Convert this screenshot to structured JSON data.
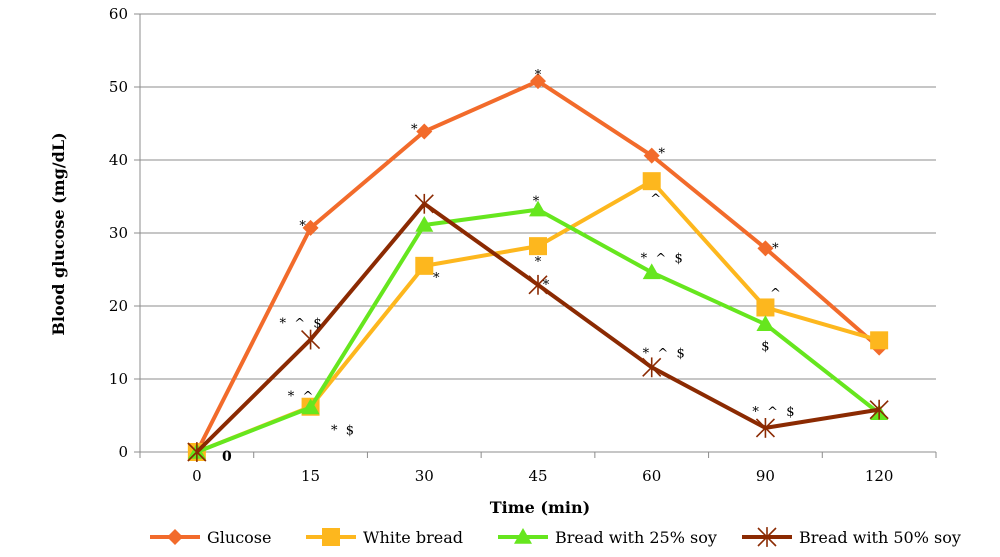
{
  "chart_data": {
    "type": "line",
    "title": "",
    "xlabel": "Time (min)",
    "ylabel": "Blood glucose (mg/dL)",
    "categories": [
      "0",
      "15",
      "30",
      "45",
      "60",
      "90",
      "120"
    ],
    "ylim": [
      0,
      60
    ],
    "yticks": [
      "0",
      "10",
      "20",
      "30",
      "40",
      "50",
      "60"
    ],
    "grid": true,
    "legend_position": "bottom",
    "series": [
      {
        "name": "Glucose",
        "values": [
          0,
          30.7,
          43.9,
          50.8,
          40.6,
          27.9,
          14.3
        ],
        "color": "#f26b2b",
        "marker": "diamond"
      },
      {
        "name": "White bread",
        "values": [
          0,
          6.2,
          25.5,
          28.2,
          37.1,
          19.8,
          15.3
        ],
        "color": "#fdb71e",
        "marker": "square"
      },
      {
        "name": "Bread with 25% soy",
        "values": [
          0,
          6.1,
          31.1,
          33.2,
          24.6,
          17.5,
          5.3
        ],
        "color": "#66e61e",
        "marker": "triangle"
      },
      {
        "name": "Bread with 50% soy",
        "values": [
          0,
          15.4,
          34.0,
          22.9,
          11.6,
          3.3,
          5.8
        ],
        "color": "#8b2a02",
        "marker": "star"
      }
    ],
    "annotations": [
      {
        "text": "0",
        "x": 0,
        "y": 0
      },
      {
        "text": "*",
        "x": 15,
        "y": 30.7
      },
      {
        "text": "* ^ $",
        "x": 15,
        "y": 15.4
      },
      {
        "text": "* ^",
        "x": 15,
        "y": 6.2
      },
      {
        "text": "* $",
        "x": 15,
        "y": 6.1
      },
      {
        "text": "*",
        "x": 30,
        "y": 43.9
      },
      {
        "text": "*",
        "x": 30,
        "y": 25.5
      },
      {
        "text": "*",
        "x": 45,
        "y": 50.8
      },
      {
        "text": "*",
        "x": 45,
        "y": 33.2
      },
      {
        "text": "*",
        "x": 45,
        "y": 28.2
      },
      {
        "text": "*",
        "x": 45,
        "y": 22.9
      },
      {
        "text": "*",
        "x": 60,
        "y": 40.6
      },
      {
        "text": "^",
        "x": 60,
        "y": 37.1
      },
      {
        "text": "* ^ $",
        "x": 60,
        "y": 24.6
      },
      {
        "text": "* ^ $",
        "x": 60,
        "y": 11.6
      },
      {
        "text": "*",
        "x": 90,
        "y": 27.9
      },
      {
        "text": "^",
        "x": 90,
        "y": 19.8
      },
      {
        "text": "$",
        "x": 90,
        "y": 17.5
      },
      {
        "text": "* ^ $",
        "x": 90,
        "y": 3.3
      }
    ]
  }
}
